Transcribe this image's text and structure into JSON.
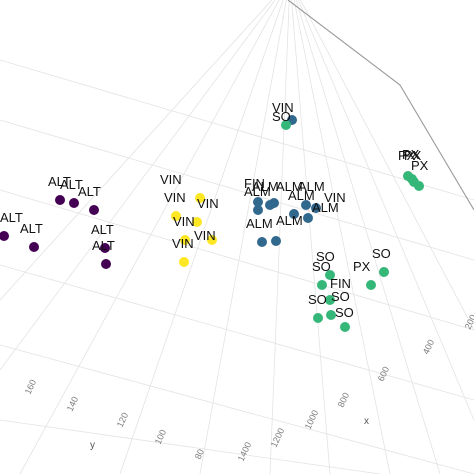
{
  "chart_data": {
    "type": "scatter",
    "projection": "3d",
    "title": "",
    "xlabel": "x",
    "ylabel": "y",
    "zlabel": "",
    "grid": true,
    "legend": "none",
    "x_ticks": [
      "400",
      "600",
      "800",
      "1000",
      "1200",
      "1400"
    ],
    "x_tick_extra": [
      "200"
    ],
    "y_ticks": [
      "80",
      "100",
      "120",
      "140",
      "160"
    ],
    "colors": {
      "ALT": "#440154",
      "VIN": "#fde725",
      "ALM": "#31688e",
      "SO": "#35b779",
      "PX": "#35b779"
    },
    "points": [
      {
        "label": "ALT",
        "group": "ALT",
        "x": 1500,
        "y": 168
      },
      {
        "label": "ALT",
        "group": "ALT",
        "x": 1480,
        "y": 160
      },
      {
        "label": "ALT",
        "group": "ALT",
        "x": 1450,
        "y": 148
      },
      {
        "label": "ALT",
        "group": "ALT",
        "x": 1420,
        "y": 140
      },
      {
        "label": "ALT",
        "group": "ALT",
        "x": 1400,
        "y": 134
      },
      {
        "label": "ALT",
        "group": "ALT",
        "x": 1370,
        "y": 126
      },
      {
        "label": "ALT",
        "group": "ALT",
        "x": 1350,
        "y": 130
      },
      {
        "label": "VIN",
        "group": "VIN",
        "x": 1300,
        "y": 98
      },
      {
        "label": "VIN",
        "group": "VIN",
        "x": 1260,
        "y": 96
      },
      {
        "label": "VIN",
        "group": "VIN",
        "x": 1300,
        "y": 90
      },
      {
        "label": "VIN",
        "group": "VIN",
        "x": 1250,
        "y": 88
      },
      {
        "label": "VIN",
        "group": "VIN",
        "x": 1120,
        "y": 82
      },
      {
        "label": "VIN",
        "group": "VIN",
        "x": 1150,
        "y": 90
      },
      {
        "label": "FIN",
        "group": "ALM",
        "x": 1020,
        "y": 70
      },
      {
        "label": "ALM",
        "group": "ALM",
        "x": 1010,
        "y": 68
      },
      {
        "label": "ALM",
        "group": "ALM",
        "x": 980,
        "y": 66
      },
      {
        "label": "ALM",
        "group": "ALM",
        "x": 950,
        "y": 62
      },
      {
        "label": "ALM",
        "group": "ALM",
        "x": 930,
        "y": 60
      },
      {
        "label": "ALM",
        "group": "ALM",
        "x": 1000,
        "y": 74
      },
      {
        "label": "ALM",
        "group": "ALM",
        "x": 990,
        "y": 76
      },
      {
        "label": "ALM",
        "group": "ALM",
        "x": 940,
        "y": 66
      },
      {
        "label": "ALM",
        "group": "ALM",
        "x": 920,
        "y": 64
      },
      {
        "label": "VIN",
        "group": "ALM",
        "x": 960,
        "y": 62
      },
      {
        "label": "VIN",
        "group": "ALM",
        "x": 950,
        "y": 60
      },
      {
        "label": "SO",
        "group": "SO",
        "x": 880,
        "y": 58
      },
      {
        "label": "SO",
        "group": "SO",
        "x": 820,
        "y": 56
      },
      {
        "label": "SO",
        "group": "SO",
        "x": 800,
        "y": 54
      },
      {
        "label": "SO",
        "group": "SO",
        "x": 790,
        "y": 52
      },
      {
        "label": "SO",
        "group": "SO",
        "x": 760,
        "y": 50
      },
      {
        "label": "SO",
        "group": "SO",
        "x": 770,
        "y": 52
      },
      {
        "label": "FIN",
        "group": "SO",
        "x": 650,
        "y": 48
      },
      {
        "label": "SO",
        "group": "SO",
        "x": 680,
        "y": 50
      },
      {
        "label": "PX",
        "group": "PX",
        "x": 400,
        "y": 40
      },
      {
        "label": "PX",
        "group": "PX",
        "x": 395,
        "y": 38
      },
      {
        "label": "PX",
        "group": "PX",
        "x": 390,
        "y": 37
      },
      {
        "label": "PX",
        "group": "PX",
        "x": 385,
        "y": 36
      },
      {
        "label": "PX",
        "group": "PX",
        "x": 380,
        "y": 35
      }
    ]
  }
}
